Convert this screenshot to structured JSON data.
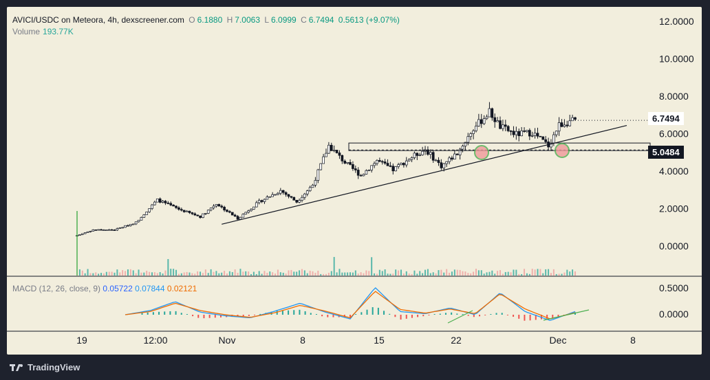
{
  "header": {
    "symbol": "AVICI/USDC on Meteora, 4h, dexscreener.com",
    "ohlc": [
      {
        "k": "O",
        "v": "6.1880"
      },
      {
        "k": "H",
        "v": "7.0063"
      },
      {
        "k": "L",
        "v": "6.0999"
      },
      {
        "k": "C",
        "v": "6.7494"
      }
    ],
    "change": "0.5613 (+9.07%)",
    "volume_label": "Volume",
    "volume_value": "193.77K"
  },
  "macd": {
    "label": "MACD (12, 26, close, 9)",
    "v1": "0.05722",
    "v2": "0.07844",
    "v3": "0.02121"
  },
  "price_tags": {
    "last": "6.7494",
    "level": "5.0484"
  },
  "branding": {
    "text": "TradingView"
  },
  "colors": {
    "bg": "#f2eedd",
    "up": "#131722",
    "macd_line": "#2196f3",
    "signal_line": "#ef6c00",
    "hist_up": "#26a69a",
    "hist_down": "#ef5350",
    "volume": "#26a69a"
  },
  "chart_data": [
    {
      "type": "candlestick",
      "y_axis_ticks": [
        "12.0000",
        "10.0000",
        "8.0000",
        "6.0000",
        "4.0000",
        "2.0000",
        "0.0000"
      ],
      "ylim": [
        -0.9,
        12.7
      ],
      "x_axis_ticks": [
        "19",
        "12:00",
        "Nov",
        "8",
        "15",
        "22",
        "Dec",
        "8"
      ],
      "price_path": [
        [
          0,
          0.6
        ],
        [
          6,
          0.9
        ],
        [
          14,
          0.9
        ],
        [
          22,
          1.3
        ],
        [
          30,
          2.5
        ],
        [
          38,
          2.0
        ],
        [
          46,
          1.6
        ],
        [
          52,
          2.3
        ],
        [
          60,
          1.5
        ],
        [
          68,
          2.4
        ],
        [
          76,
          3.0
        ],
        [
          82,
          2.4
        ],
        [
          88,
          3.3
        ],
        [
          92,
          4.7
        ],
        [
          94,
          5.4
        ],
        [
          100,
          4.5
        ],
        [
          106,
          3.8
        ],
        [
          112,
          4.6
        ],
        [
          118,
          4.1
        ],
        [
          124,
          4.7
        ],
        [
          130,
          5.2
        ],
        [
          136,
          4.3
        ],
        [
          142,
          5.0
        ],
        [
          148,
          6.3
        ],
        [
          154,
          7.2
        ],
        [
          158,
          6.4
        ],
        [
          164,
          6.0
        ],
        [
          170,
          6.1
        ],
        [
          176,
          5.4
        ],
        [
          180,
          6.5
        ],
        [
          184,
          6.7
        ]
      ],
      "trendline": {
        "from": [
          54,
          1.2
        ],
        "to": [
          186,
          6.4
        ]
      },
      "support_zone": [
        5.0484,
        5.5
      ],
      "last_price": 6.7494,
      "highlights": [
        "support retest 1",
        "support retest 2"
      ]
    },
    {
      "type": "line",
      "title": "MACD (12, 26, close, 9)",
      "y_axis_ticks": [
        "0.5000",
        "0.0000"
      ],
      "ylim": [
        -0.22,
        0.62
      ],
      "series": [
        {
          "name": "MACD",
          "values": [
            0.0,
            0.08,
            0.25,
            0.05,
            -0.02,
            -0.06,
            0.07,
            0.22,
            0.05,
            -0.08,
            0.52,
            0.06,
            0.02,
            0.13,
            0.0,
            0.42,
            0.06,
            -0.11,
            0.06
          ]
        },
        {
          "name": "Signal",
          "values": [
            0.0,
            0.06,
            0.22,
            0.08,
            0.0,
            -0.05,
            0.04,
            0.18,
            0.07,
            -0.06,
            0.45,
            0.1,
            0.03,
            0.11,
            0.02,
            0.4,
            0.11,
            -0.08,
            0.04
          ]
        }
      ]
    }
  ]
}
